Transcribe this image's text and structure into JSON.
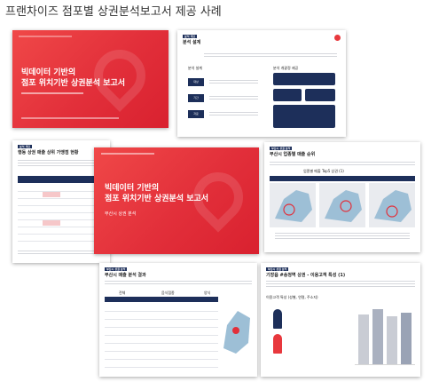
{
  "page": {
    "title": "프랜차이즈 점포별 상권분석보고서 제공 사례"
  },
  "cover_1": {
    "title_line1": "빅데이터 기반의",
    "title_line2": "점포 위치기반 상권분석 보고서"
  },
  "cover_2": {
    "title_line1": "빅데이터 기반의",
    "title_line2": "점포 위치기반 상권분석 보고서",
    "subtitle": "부산시 상권 분석"
  },
  "slide_overview": {
    "section": "분석 개요",
    "heading": "분석 설계",
    "left_head": "분석 설계",
    "right_head": "분석 개괄정 제공",
    "left_labels": [
      "대상",
      "기간",
      "자료"
    ]
  },
  "slide_table": {
    "section": "분석 개요",
    "heading": "행동 상권 매출 상위 가맹점 현황"
  },
  "slide_map": {
    "section": "부산시 상권 분석",
    "heading": "부산시 업종별 매출 순위",
    "sub": "업종별 매출 Top5 상권 (1)"
  },
  "slide_result": {
    "section": "부산시 상권 분석",
    "heading": "부산시 매출 분석 결과",
    "col_labels": [
      "전체",
      "음식점종",
      "양식"
    ]
  },
  "slide_customer": {
    "section": "부산시 상권 분석",
    "heading": "기장읍 #송정역 상권 - 이용고객 특성 (1)",
    "sub": "이용고객 특성 (성별, 연령, 주소지)"
  },
  "colors": {
    "brand_red": "#e22f3a",
    "navy": "#1d2f5a"
  },
  "icons": [
    "location-pin-icon",
    "logo-icon"
  ]
}
